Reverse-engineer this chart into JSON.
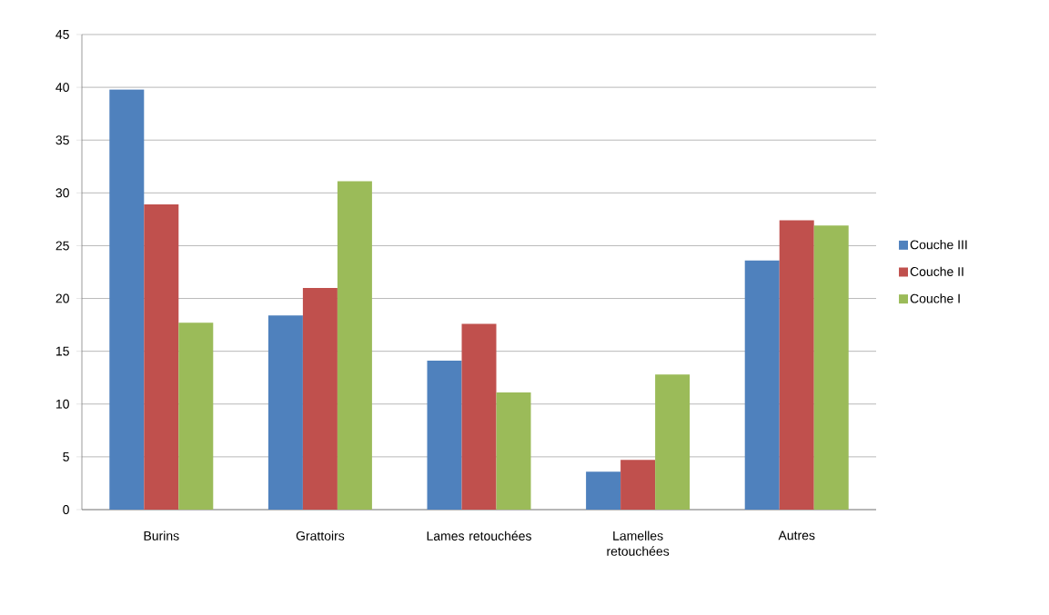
{
  "chart_data": {
    "type": "bar",
    "categories": [
      "Burins",
      "Grattoirs",
      "Lames retouchées",
      "Lamelles retouchées",
      "Autres"
    ],
    "series": [
      {
        "name": "Couche III",
        "color": "#4f81bd",
        "values": [
          39.8,
          18.4,
          14.1,
          3.6,
          23.6
        ]
      },
      {
        "name": "Couche II",
        "color": "#c0504d",
        "values": [
          28.9,
          21.0,
          17.6,
          4.7,
          27.4
        ]
      },
      {
        "name": "Couche I",
        "color": "#9bbb59",
        "values": [
          17.7,
          31.1,
          11.1,
          12.8,
          26.9
        ]
      }
    ],
    "ylim": [
      0,
      45
    ],
    "yticks": [
      0,
      5,
      10,
      15,
      20,
      25,
      30,
      35,
      40,
      45
    ],
    "grid": "y",
    "legend": "right"
  }
}
